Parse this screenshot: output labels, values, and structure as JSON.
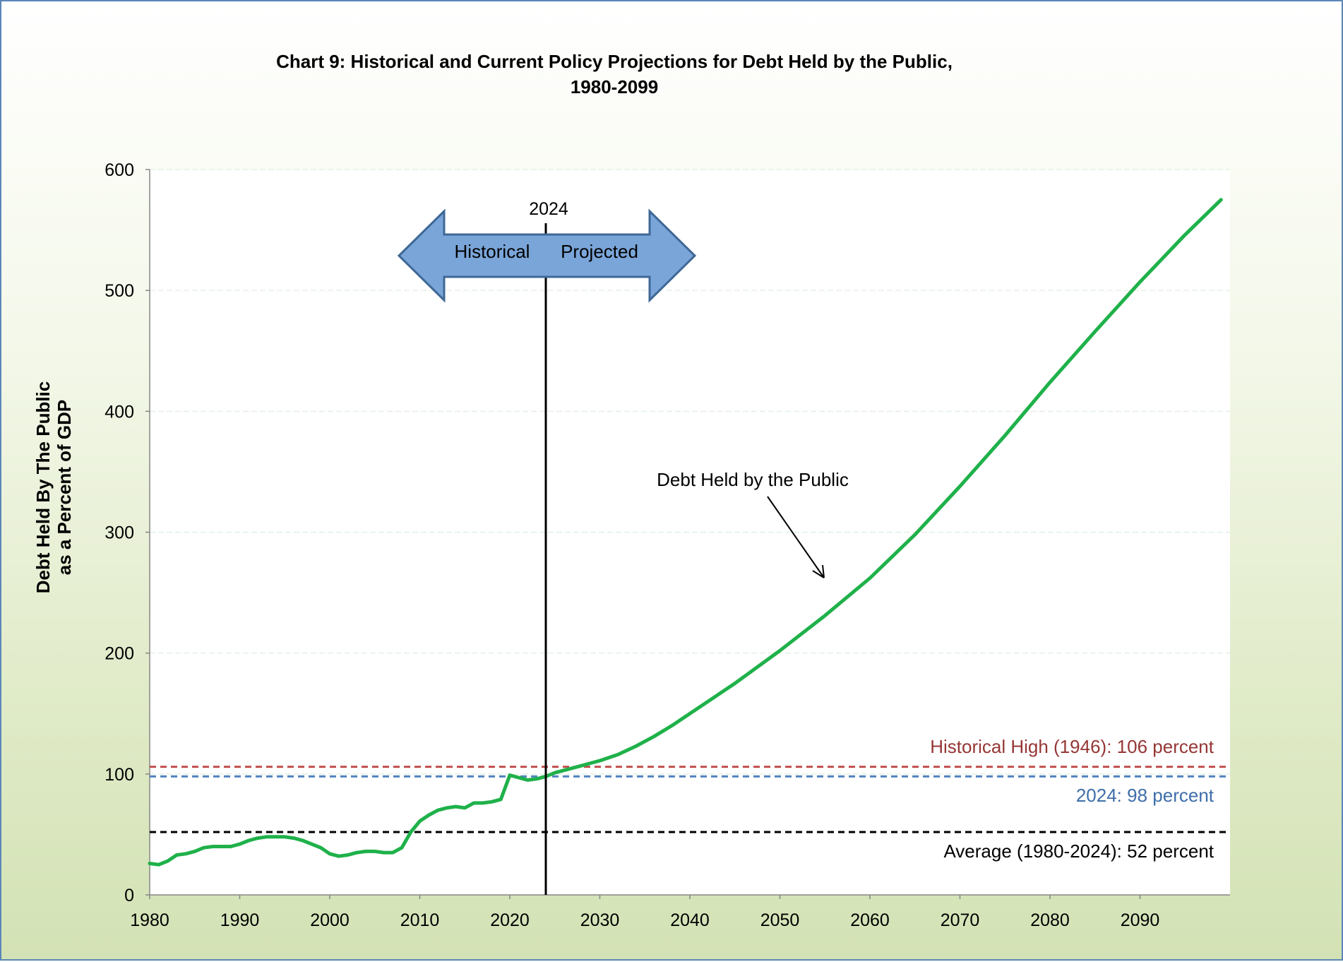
{
  "chart_data": {
    "type": "line",
    "title_line1": "Chart 9:  Historical and Current Policy Projections for Debt Held by the Public,",
    "title_line2": "1980-2099",
    "ylabel_line1": "Debt Held By The Public",
    "ylabel_line2": "as a Percent of GDP",
    "xlim": [
      1980,
      2100
    ],
    "ylim": [
      0,
      600
    ],
    "x_ticks": [
      1980,
      1990,
      2000,
      2010,
      2020,
      2030,
      2040,
      2050,
      2060,
      2070,
      2080,
      2090
    ],
    "y_ticks": [
      0,
      100,
      200,
      300,
      400,
      500,
      600
    ],
    "grid": true,
    "series": [
      {
        "name": "Debt Held by the Public",
        "color": "#1fb14a",
        "x": [
          1980,
          1981,
          1982,
          1983,
          1984,
          1985,
          1986,
          1987,
          1988,
          1989,
          1990,
          1991,
          1992,
          1993,
          1994,
          1995,
          1996,
          1997,
          1998,
          1999,
          2000,
          2001,
          2002,
          2003,
          2004,
          2005,
          2006,
          2007,
          2008,
          2009,
          2010,
          2011,
          2012,
          2013,
          2014,
          2015,
          2016,
          2017,
          2018,
          2019,
          2020,
          2021,
          2022,
          2023,
          2024,
          2025,
          2026,
          2027,
          2028,
          2029,
          2030,
          2032,
          2034,
          2036,
          2038,
          2040,
          2045,
          2050,
          2055,
          2060,
          2065,
          2070,
          2075,
          2080,
          2085,
          2090,
          2095,
          2099
        ],
        "values": [
          26,
          25,
          28,
          33,
          34,
          36,
          39,
          40,
          40,
          40,
          42,
          45,
          47,
          48,
          48,
          48,
          47,
          45,
          42,
          39,
          34,
          32,
          33,
          35,
          36,
          36,
          35,
          35,
          39,
          52,
          61,
          66,
          70,
          72,
          73,
          72,
          76,
          76,
          77,
          79,
          99,
          97,
          95,
          96,
          98,
          101,
          103,
          105,
          107,
          109,
          111,
          116,
          123,
          131,
          140,
          150,
          175,
          202,
          231,
          262,
          298,
          338,
          380,
          424,
          466,
          507,
          546,
          575
        ]
      }
    ],
    "reference_lines": [
      {
        "label": "Historical High (1946): 106 percent",
        "value": 106,
        "color": "#c0504d",
        "label_color": "#953735"
      },
      {
        "label": "2024: 98 percent",
        "value": 98,
        "color": "#4f81bd",
        "label_color": "#3e6eaa"
      },
      {
        "label": "Average (1980-2024): 52 percent",
        "value": 52,
        "color": "#000000",
        "label_color": "#000000"
      }
    ],
    "vertical_marker": {
      "x": 2024,
      "label": "2024"
    },
    "arrow_labels": {
      "left": "Historical",
      "right": "Projected"
    },
    "annotation": "Debt Held by the Public",
    "colors": {
      "background_top": "#ffffff",
      "background_bottom": "#d3e2b5",
      "frame_border": "#5b86b8",
      "arrow_fill": "#7aa5d8",
      "arrow_stroke": "#3f6896",
      "gridline": "#d8ecd8"
    }
  }
}
